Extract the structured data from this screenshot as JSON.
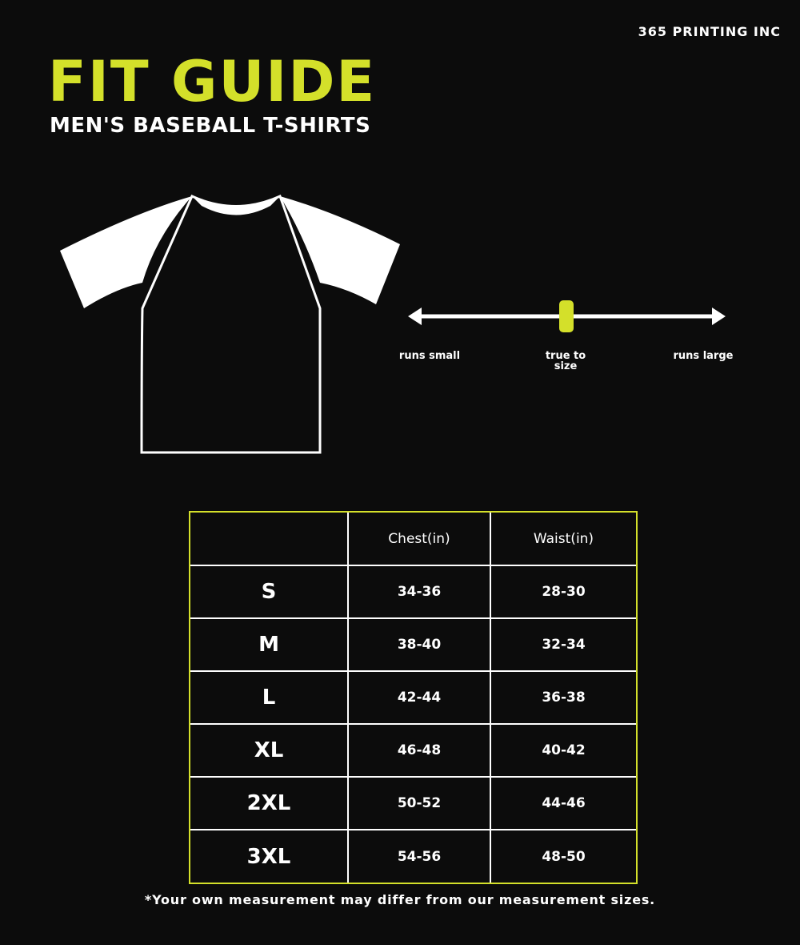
{
  "brand": "365 PRINTING INC",
  "title": "FIT GUIDE",
  "subtitle": "MEN'S BASEBALL T-SHIRTS",
  "colors": {
    "accent": "#d4e02a",
    "background": "#0c0c0c"
  },
  "fit_scale": {
    "left": "runs small",
    "center": "true to size",
    "right": "runs large",
    "value": 0.5
  },
  "table": {
    "headers": [
      "",
      "Chest(in)",
      "Waist(in)"
    ],
    "rows": [
      [
        "S",
        "34-36",
        "28-30"
      ],
      [
        "M",
        "38-40",
        "32-34"
      ],
      [
        "L",
        "42-44",
        "36-38"
      ],
      [
        "XL",
        "46-48",
        "40-42"
      ],
      [
        "2XL",
        "50-52",
        "44-46"
      ],
      [
        "3XL",
        "54-56",
        "48-50"
      ]
    ]
  },
  "note": "*Your own measurement may differ from our measurement sizes."
}
